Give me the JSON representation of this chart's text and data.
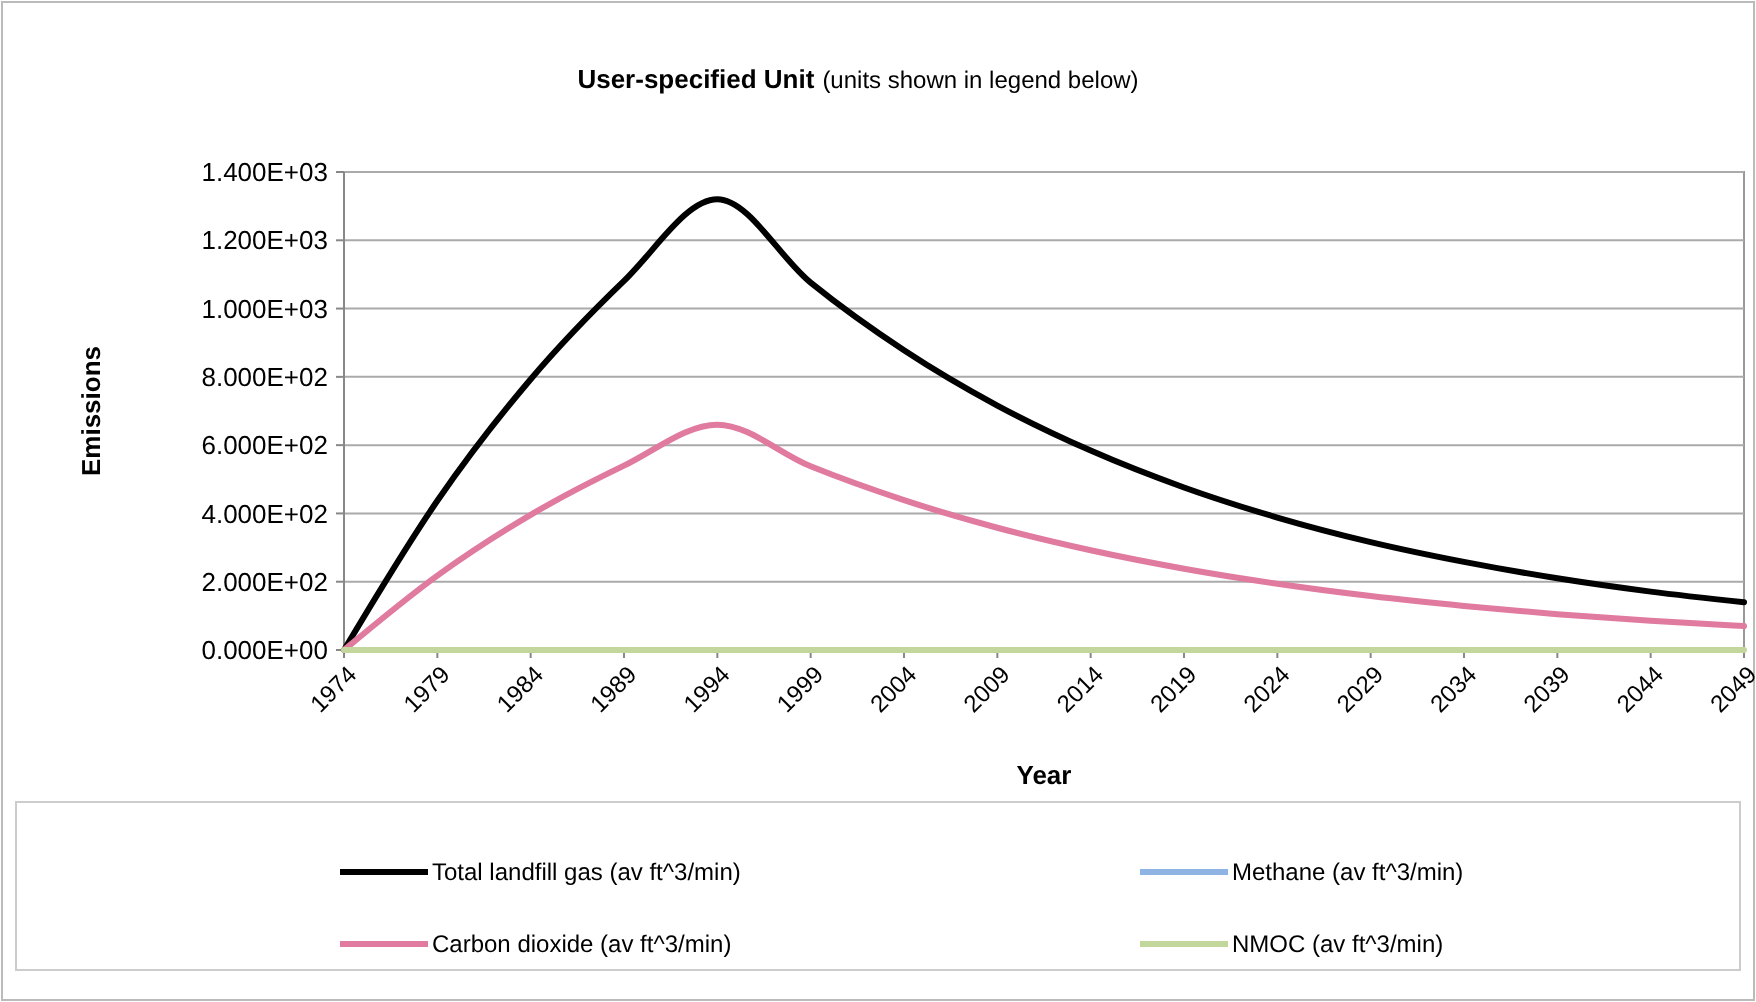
{
  "chart_data": {
    "type": "line",
    "title": "User-specified Unit",
    "subtitle": "(units shown in legend below)",
    "xlabel": "Year",
    "ylabel": "Emissions",
    "x": [
      1974,
      1979,
      1984,
      1989,
      1994,
      1999,
      2004,
      2009,
      2014,
      2019,
      2024,
      2029,
      2034,
      2039,
      2044,
      2049
    ],
    "series": [
      {
        "name": "Total landfill gas (av ft^3/min)",
        "color": "#000000",
        "values": [
          0,
          437,
          793,
          1081,
          1320,
          1076,
          878,
          716,
          584,
          476,
          388,
          316,
          258,
          210,
          171,
          140
        ]
      },
      {
        "name": "Methane (av ft^3/min)",
        "color": "#8eb4e3",
        "values": [
          null,
          null,
          null,
          null,
          null,
          null,
          null,
          null,
          null,
          null,
          null,
          null,
          null,
          null,
          null,
          null
        ]
      },
      {
        "name": "Carbon dioxide (av ft^3/min)",
        "color": "#e07a9e",
        "values": [
          0,
          218,
          396,
          540,
          660,
          538,
          439,
          358,
          292,
          238,
          194,
          158,
          129,
          105,
          86,
          70
        ]
      },
      {
        "name": "NMOC (av ft^3/min)",
        "color": "#c3d69b",
        "values": [
          0,
          0,
          0,
          0,
          0,
          0,
          0,
          0,
          0,
          0,
          0,
          0,
          0,
          0,
          0,
          0
        ]
      }
    ],
    "xlim": [
      1974,
      2049
    ],
    "xticks": [
      1974,
      1979,
      1984,
      1989,
      1994,
      1999,
      2004,
      2009,
      2014,
      2019,
      2024,
      2029,
      2034,
      2039,
      2044,
      2049
    ],
    "ylim": [
      0,
      1400
    ],
    "yticks": [
      {
        "value": 0,
        "label": "0.000E+00"
      },
      {
        "value": 200,
        "label": "2.000E+02"
      },
      {
        "value": 400,
        "label": "4.000E+02"
      },
      {
        "value": 600,
        "label": "6.000E+02"
      },
      {
        "value": 800,
        "label": "8.000E+02"
      },
      {
        "value": 1000,
        "label": "1.000E+03"
      },
      {
        "value": 1200,
        "label": "1.200E+03"
      },
      {
        "value": 1400,
        "label": "1.400E+03"
      }
    ],
    "grid": "y",
    "legend": "bottom",
    "marker": "none",
    "line_style": "solid"
  }
}
